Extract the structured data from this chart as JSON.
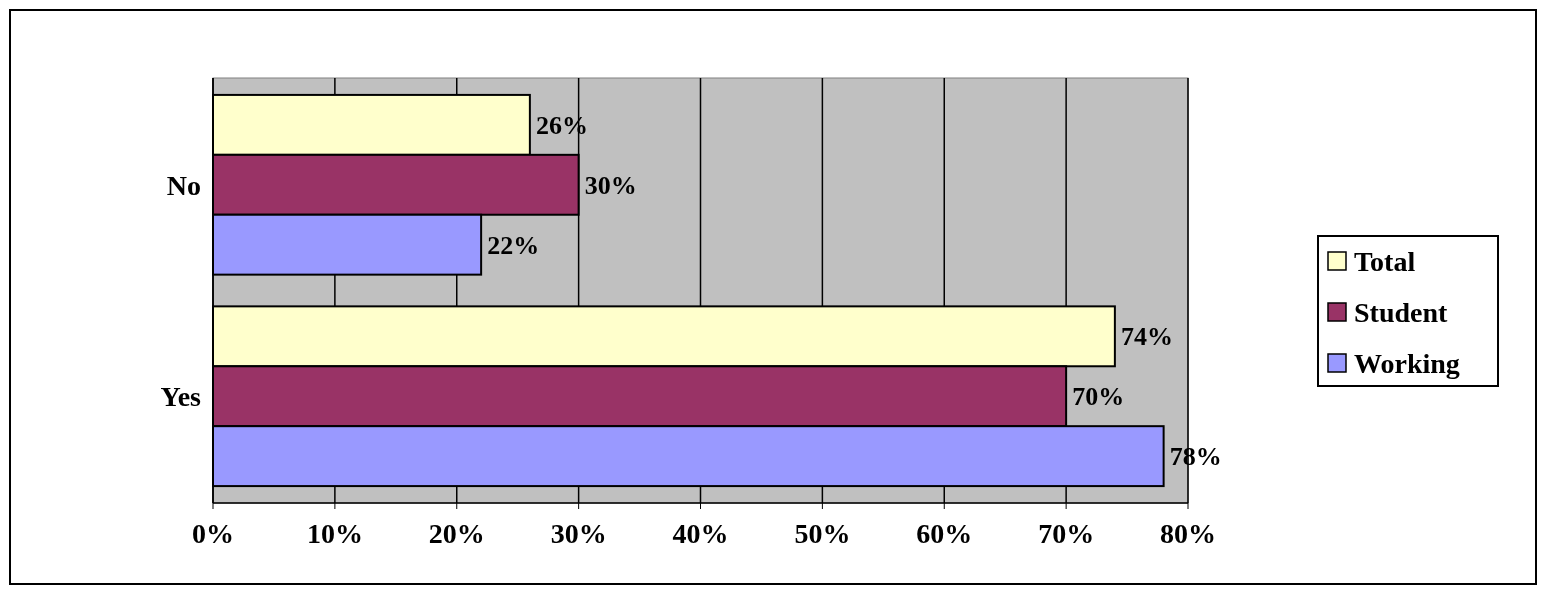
{
  "chart_data": {
    "type": "bar",
    "orientation": "horizontal",
    "categories": [
      "No",
      "Yes"
    ],
    "series": [
      {
        "name": "Total",
        "color": "#ffffcc",
        "values": [
          26,
          74
        ],
        "value_labels": [
          "26%",
          "74%"
        ]
      },
      {
        "name": "Student",
        "color": "#993366",
        "values": [
          30,
          70
        ],
        "value_labels": [
          "30%",
          "70%"
        ]
      },
      {
        "name": "Working",
        "color": "#9999ff",
        "values": [
          22,
          78
        ],
        "value_labels": [
          "22%",
          "78%"
        ]
      }
    ],
    "xlim": [
      0,
      80
    ],
    "xticks": [
      {
        "value": 0,
        "label": "0%"
      },
      {
        "value": 10,
        "label": "10%"
      },
      {
        "value": 20,
        "label": "20%"
      },
      {
        "value": 30,
        "label": "30%"
      },
      {
        "value": 40,
        "label": "40%"
      },
      {
        "value": 50,
        "label": "50%"
      },
      {
        "value": 60,
        "label": "60%"
      },
      {
        "value": 70,
        "label": "70%"
      },
      {
        "value": 80,
        "label": "80%"
      }
    ],
    "grid": "x",
    "legend": "right"
  }
}
